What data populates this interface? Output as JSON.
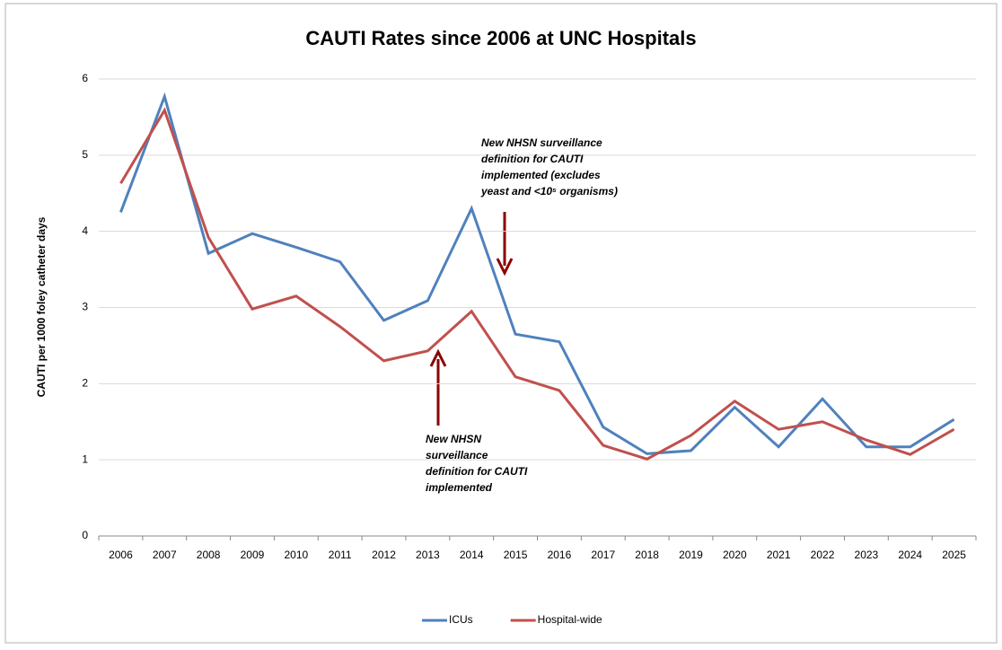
{
  "chart_data": {
    "type": "line",
    "title": "CAUTI Rates since 2006 at UNC Hospitals",
    "y_label": "CAUTI  per 1000 foley catheter days",
    "categories": [
      "2006",
      "2007",
      "2008",
      "2009",
      "2010",
      "2011",
      "2012",
      "2013",
      "2014",
      "2015",
      "2016",
      "2017",
      "2018",
      "2019",
      "2020",
      "2021",
      "2022",
      "2023",
      "2024",
      "2025"
    ],
    "series": [
      {
        "name": "ICUs",
        "color": "#4f81bd",
        "values": [
          4.25,
          5.77,
          3.71,
          3.97,
          3.79,
          3.6,
          2.83,
          3.09,
          4.3,
          2.65,
          2.55,
          1.43,
          1.08,
          1.12,
          1.69,
          1.17,
          1.8,
          1.17,
          1.17,
          1.53
        ]
      },
      {
        "name": "Hospital-wide",
        "color": "#c0504d",
        "values": [
          4.63,
          5.59,
          3.92,
          2.98,
          3.15,
          2.75,
          2.3,
          2.43,
          2.95,
          2.09,
          1.91,
          1.19,
          1.01,
          1.32,
          1.77,
          1.4,
          1.5,
          1.26,
          1.07,
          1.4
        ]
      }
    ],
    "ylim": [
      0,
      6
    ],
    "yticks": [
      0,
      1,
      2,
      3,
      4,
      5,
      6
    ],
    "grid": true,
    "legend": "bottom",
    "annotations": [
      {
        "lines": [
          "New  NHSN surveillance",
          "definition for CAUTI",
          "implemented (excludes",
          "yeast and <10⁵ organisms)"
        ]
      },
      {
        "lines": [
          "New  NHSN",
          "surveillance",
          "definition for CAUTI",
          "implemented"
        ]
      }
    ]
  }
}
